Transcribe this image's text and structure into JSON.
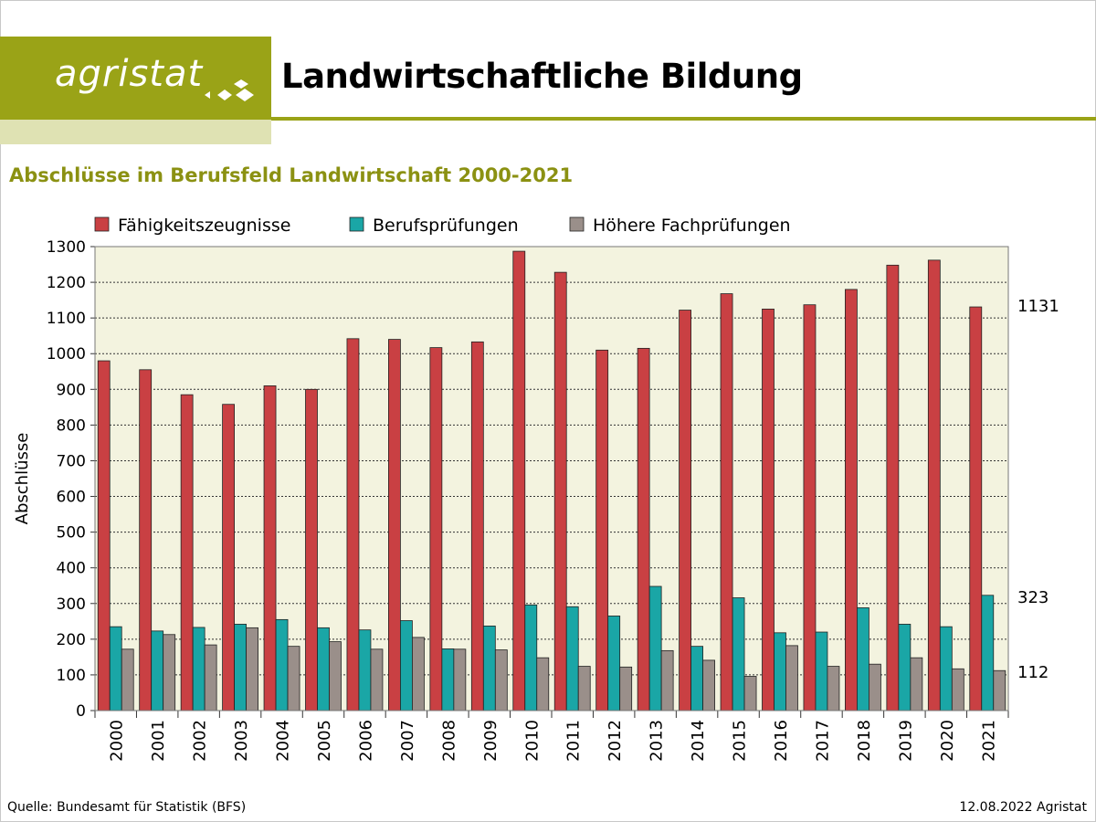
{
  "header": {
    "logo_text": "agristat",
    "title": "Landwirtschaftliche Bildung"
  },
  "subtitle": "Abschlüsse im Berufsfeld Landwirtschaft 2000-2021",
  "footer": {
    "source": "Quelle: Bundesamt für Statistik (BFS)",
    "date": "12.08.2022 Agristat"
  },
  "colors": {
    "brand": "#9aa317",
    "plot_background": "#f3f3df"
  },
  "chart_data": {
    "type": "bar",
    "title": "",
    "xlabel": "",
    "ylabel": "Abschlüsse",
    "ylim": [
      0,
      1300
    ],
    "yticks": [
      0,
      100,
      200,
      300,
      400,
      500,
      600,
      700,
      800,
      900,
      1000,
      1100,
      1200,
      1300
    ],
    "grid": true,
    "legend_position": "top",
    "categories": [
      "2000",
      "2001",
      "2002",
      "2003",
      "2004",
      "2005",
      "2006",
      "2007",
      "2008",
      "2009",
      "2010",
      "2011",
      "2012",
      "2013",
      "2014",
      "2015",
      "2016",
      "2017",
      "2018",
      "2019",
      "2020",
      "2021"
    ],
    "series": [
      {
        "name": "Fähigkeitszeugnisse",
        "color": "#c94043",
        "values": [
          980,
          955,
          885,
          858,
          910,
          900,
          1042,
          1040,
          1017,
          1033,
          1287,
          1228,
          1010,
          1015,
          1122,
          1168,
          1125,
          1137,
          1180,
          1248,
          1262,
          1131
        ]
      },
      {
        "name": "Berufsprüfungen",
        "color": "#1aa6a6",
        "values": [
          235,
          223,
          233,
          242,
          255,
          232,
          226,
          252,
          173,
          237,
          296,
          291,
          265,
          348,
          180,
          316,
          218,
          220,
          288,
          242,
          235,
          323
        ]
      },
      {
        "name": "Höhere Fachprüfungen",
        "color": "#9a8f8a",
        "values": [
          172,
          213,
          184,
          232,
          180,
          193,
          172,
          205,
          172,
          170,
          148,
          124,
          122,
          168,
          141,
          96,
          182,
          124,
          130,
          148,
          117,
          112
        ]
      }
    ],
    "end_labels": [
      "1131",
      "323",
      "112"
    ]
  }
}
